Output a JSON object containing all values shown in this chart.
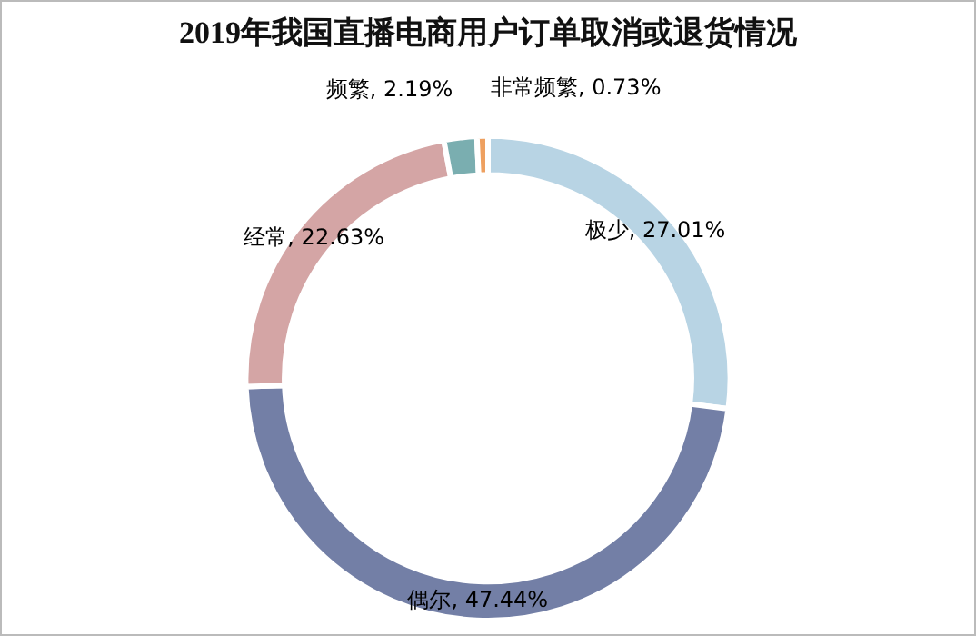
{
  "chart_data": {
    "type": "donut",
    "title": "2019年我国直播电商用户订单取消或退货情况",
    "categories": [
      "极少",
      "偶尔",
      "经常",
      "频繁",
      "非常频繁"
    ],
    "values": [
      27.01,
      47.44,
      22.63,
      2.19,
      0.73
    ],
    "value_labels": [
      "27.01%",
      "47.44%",
      "22.63%",
      "2.19%",
      "0.73%"
    ],
    "colors": [
      "#b8d4e4",
      "#737fa6",
      "#d4a5a5",
      "#7aaeb0",
      "#eea060"
    ],
    "legend": false
  }
}
